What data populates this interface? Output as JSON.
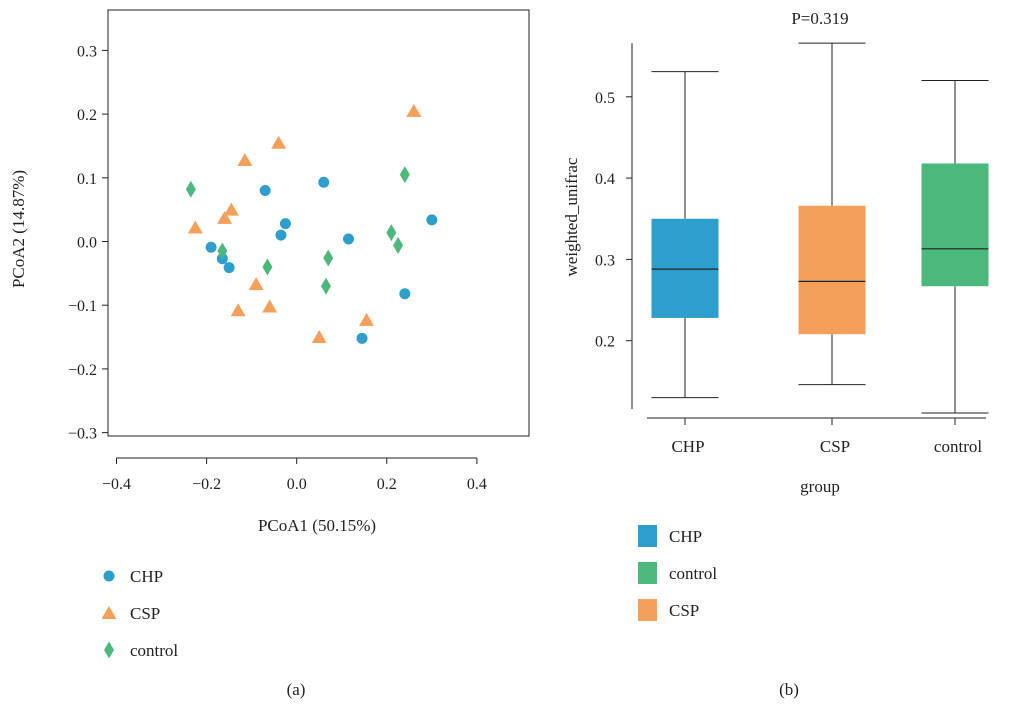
{
  "colors": {
    "CHP": "#2e9fcc",
    "CSP": "#f5a05a",
    "control": "#4cb97c",
    "axis": "#222222"
  },
  "panel_a": {
    "caption": "(a)"
  },
  "panel_b": {
    "caption": "(b)"
  },
  "chart_data": [
    {
      "type": "scatter",
      "xlabel": "PCoA1 (50.15%)",
      "ylabel": "PCoA2 (14.87%)",
      "xlim": [
        -0.45,
        0.5
      ],
      "ylim": [
        -0.34,
        0.35
      ],
      "xticks": [
        -0.4,
        -0.2,
        0.0,
        0.2,
        0.4
      ],
      "yticks": [
        -0.3,
        -0.2,
        -0.1,
        0.0,
        0.1,
        0.2,
        0.3
      ],
      "xtick_labels": [
        "−0.4",
        "−0.2",
        "0.0",
        "0.2",
        "0.4"
      ],
      "ytick_labels": [
        "−0.3",
        "−0.2",
        "−0.1",
        "0.0",
        "0.1",
        "0.2",
        "0.3"
      ],
      "legend_position": "bottom-left",
      "series": [
        {
          "name": "CHP",
          "marker": "circle",
          "color_key": "CHP",
          "points": [
            [
              -0.07,
              0.08
            ],
            [
              0.06,
              0.093
            ],
            [
              -0.025,
              0.028
            ],
            [
              -0.035,
              0.01
            ],
            [
              -0.19,
              -0.009
            ],
            [
              -0.165,
              -0.027
            ],
            [
              -0.15,
              -0.041
            ],
            [
              0.115,
              0.004
            ],
            [
              0.3,
              0.034
            ],
            [
              0.24,
              -0.082
            ],
            [
              0.145,
              -0.152
            ]
          ]
        },
        {
          "name": "CSP",
          "marker": "triangle",
          "color_key": "CSP",
          "points": [
            [
              0.26,
              0.205
            ],
            [
              -0.04,
              0.155
            ],
            [
              -0.115,
              0.128
            ],
            [
              -0.145,
              0.05
            ],
            [
              -0.16,
              0.037
            ],
            [
              -0.225,
              0.022
            ],
            [
              -0.09,
              -0.067
            ],
            [
              -0.13,
              -0.108
            ],
            [
              -0.06,
              -0.102
            ],
            [
              0.155,
              -0.123
            ],
            [
              0.05,
              -0.15
            ]
          ]
        },
        {
          "name": "control",
          "marker": "diamond",
          "color_key": "control",
          "points": [
            [
              -0.235,
              0.082
            ],
            [
              0.24,
              0.105
            ],
            [
              -0.165,
              -0.015
            ],
            [
              -0.065,
              -0.04
            ],
            [
              0.07,
              -0.026
            ],
            [
              0.21,
              0.014
            ],
            [
              0.225,
              -0.006
            ],
            [
              0.065,
              -0.07
            ]
          ]
        }
      ]
    },
    {
      "type": "box",
      "title": "P=0.319",
      "xlabel": "group",
      "ylabel": "weighted_unifrac",
      "ylim": [
        0.1,
        0.567
      ],
      "yticks": [
        0.2,
        0.3,
        0.4,
        0.5
      ],
      "ytick_labels": [
        "0.2",
        "0.3",
        "0.4",
        "0.5"
      ],
      "categories": [
        "CHP",
        "CSP",
        "control"
      ],
      "boxes": [
        {
          "name": "CHP",
          "color_key": "CHP",
          "min": 0.13,
          "q1": 0.228,
          "median": 0.288,
          "q3": 0.35,
          "max": 0.531
        },
        {
          "name": "CSP",
          "color_key": "CSP",
          "min": 0.146,
          "q1": 0.208,
          "median": 0.273,
          "q3": 0.366,
          "max": 0.566
        },
        {
          "name": "control",
          "color_key": "control",
          "min": 0.111,
          "q1": 0.267,
          "median": 0.313,
          "q3": 0.418,
          "max": 0.52
        }
      ],
      "legend_position": "bottom-left",
      "legend": [
        {
          "label": "CHP",
          "color_key": "CHP"
        },
        {
          "label": "control",
          "color_key": "control"
        },
        {
          "label": "CSP",
          "color_key": "CSP"
        }
      ]
    }
  ]
}
